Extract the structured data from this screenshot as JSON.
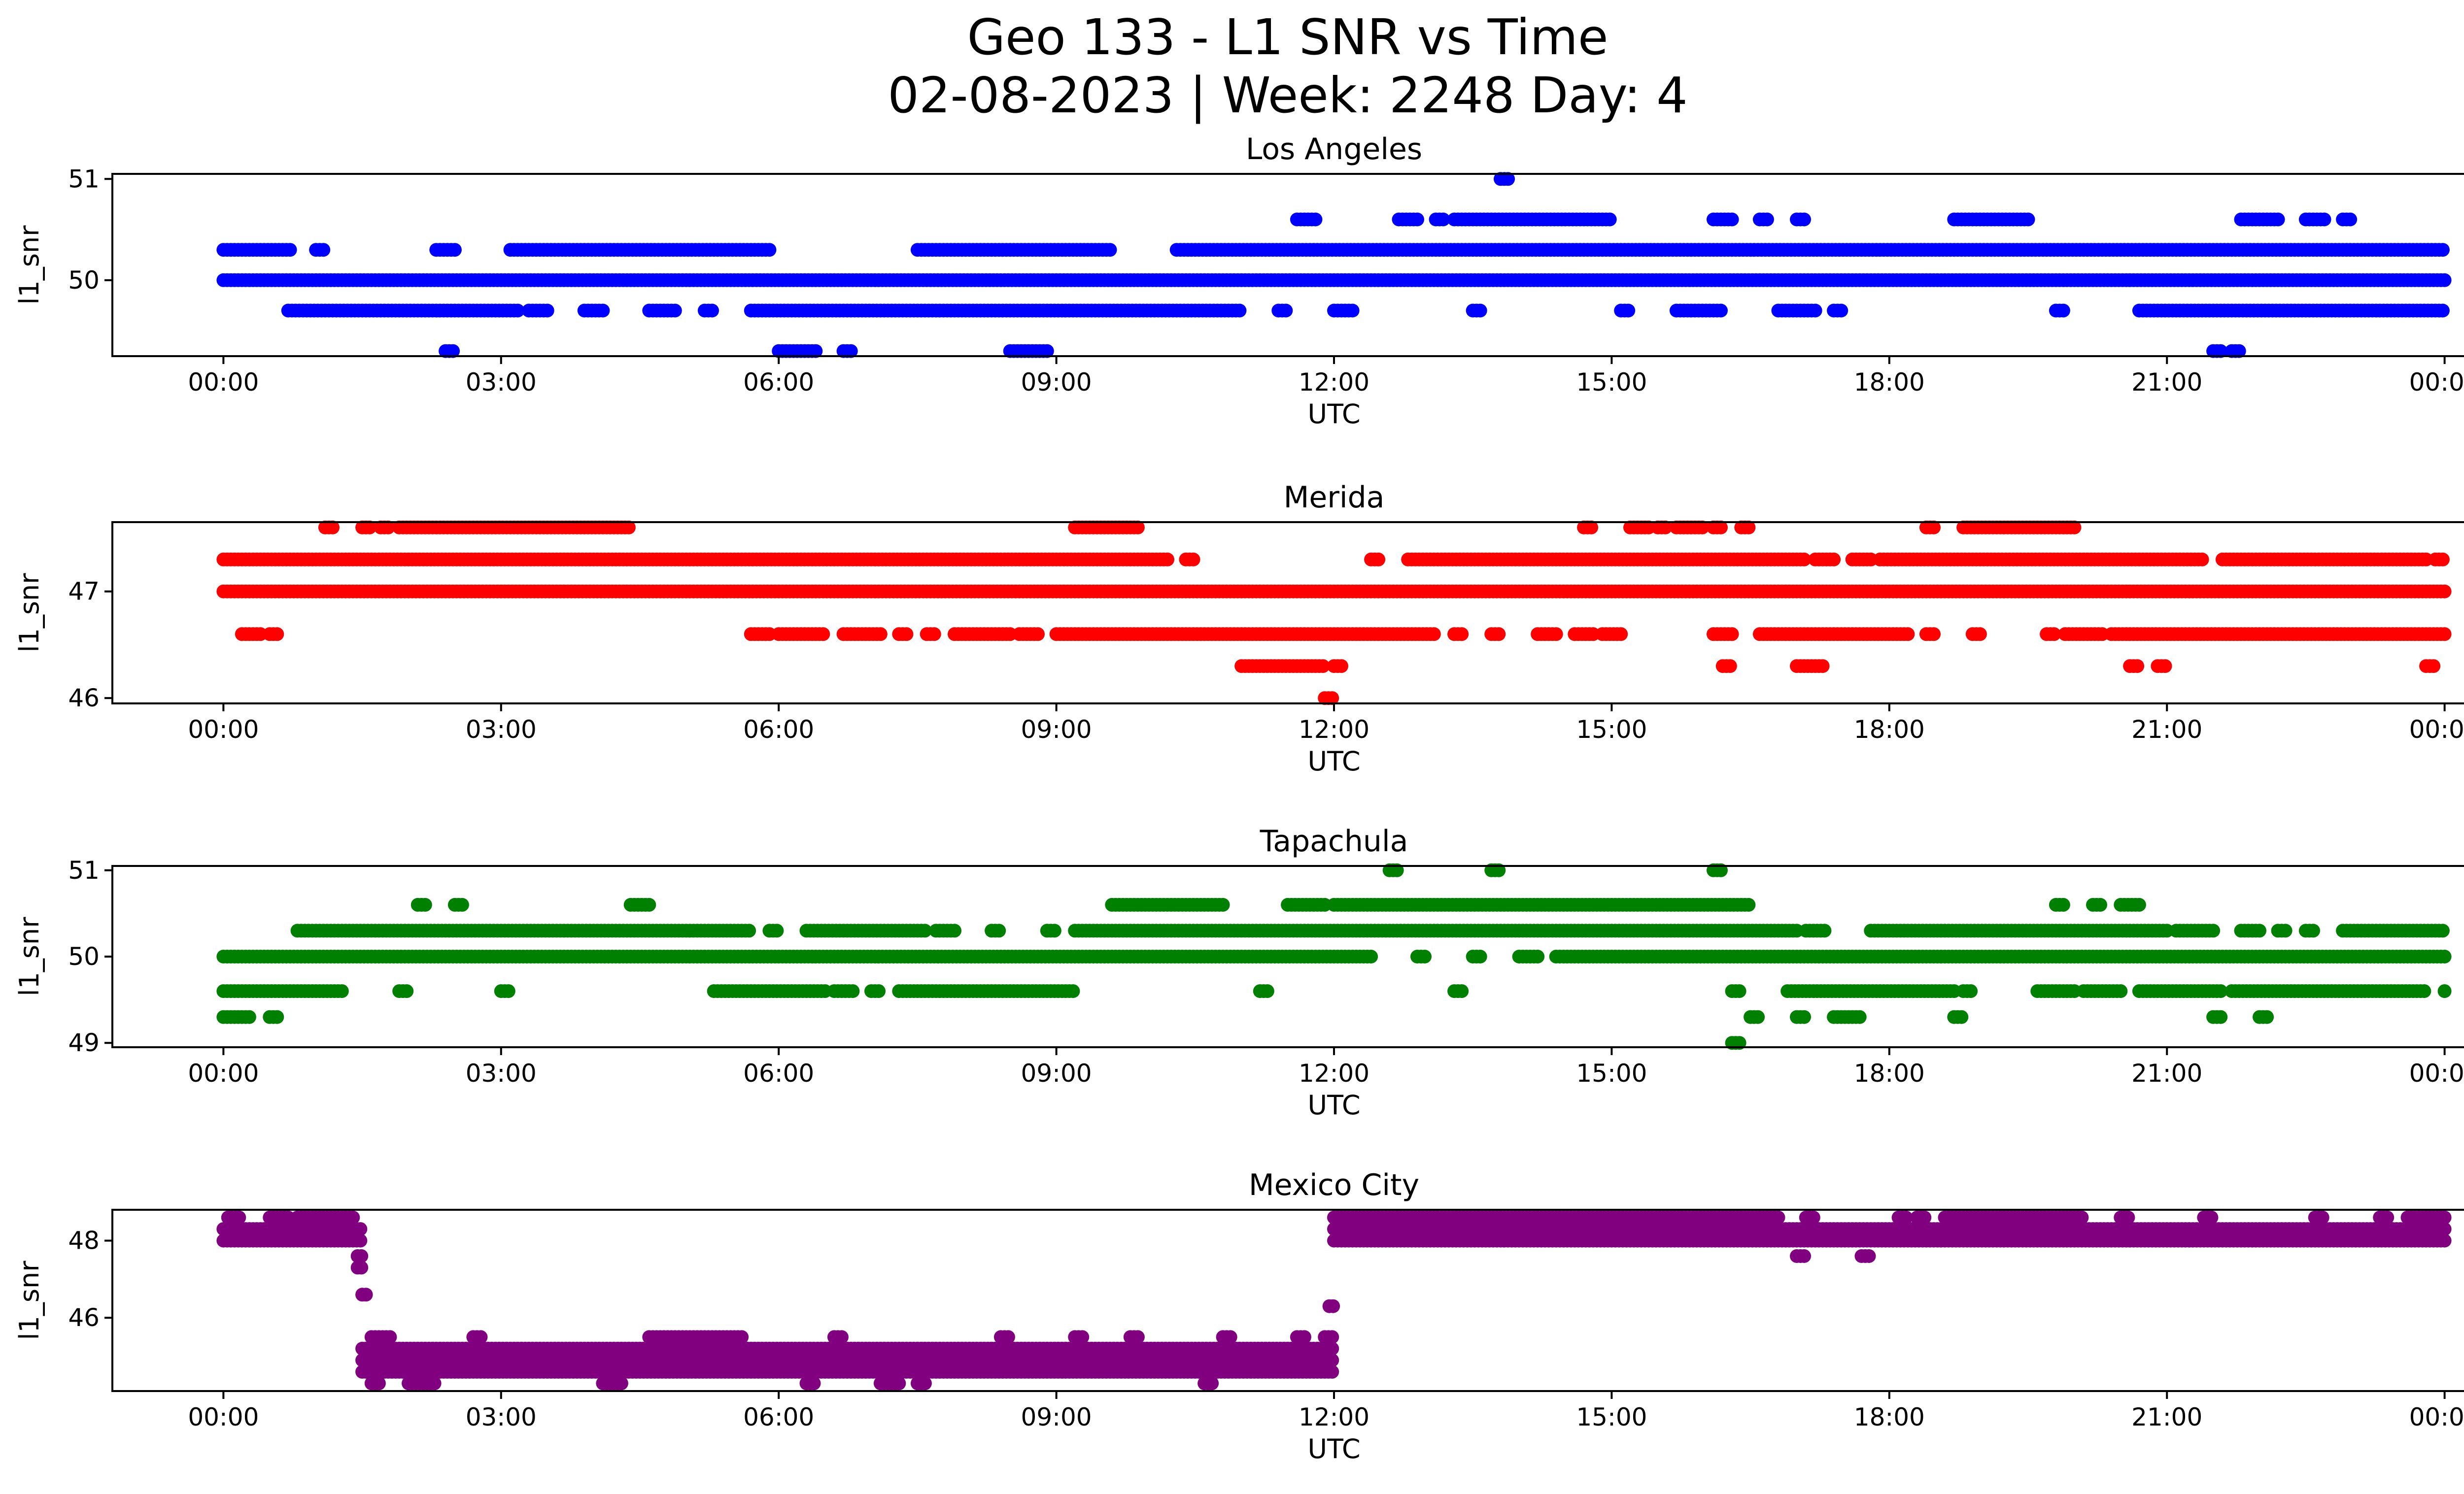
{
  "chart_data": {
    "type": "scatter",
    "title_line1": "Geo 133 - L1 SNR vs Time",
    "title_line2": "02-08-2023 | Week: 2248 Day: 4",
    "xticks": [
      "00:00",
      "03:00",
      "06:00",
      "09:00",
      "12:00",
      "15:00",
      "18:00",
      "21:00",
      "00:00"
    ],
    "xlim_hours": [
      -1.2,
      25.2
    ],
    "panels": [
      {
        "title": "Los Angeles",
        "xlabel": "UTC",
        "ylabel": "l1_snr",
        "color": "#0000ff",
        "ylim": [
          49.25,
          51.05
        ],
        "yticks": [
          50,
          51
        ],
        "levels": [
          {
            "y": 50.0,
            "segments": [
              [
                0,
                24
              ]
            ]
          },
          {
            "y": 50.3,
            "segments": [
              [
                0,
                0.75
              ],
              [
                1.0,
                1.1
              ],
              [
                2.3,
                2.5
              ],
              [
                3.1,
                5.9
              ],
              [
                7.5,
                9.6
              ],
              [
                10.3,
                24
              ]
            ]
          },
          {
            "y": 49.7,
            "segments": [
              [
                0.7,
                3.2
              ],
              [
                3.3,
                3.5
              ],
              [
                3.9,
                4.1
              ],
              [
                4.6,
                4.9
              ],
              [
                5.2,
                5.3
              ],
              [
                5.7,
                11.0
              ],
              [
                11.4,
                11.5
              ],
              [
                12.0,
                12.2
              ],
              [
                13.5,
                13.6
              ],
              [
                15.1,
                15.2
              ],
              [
                15.7,
                16.2
              ],
              [
                16.8,
                17.2
              ],
              [
                17.4,
                17.5
              ],
              [
                19.8,
                19.9
              ],
              [
                20.7,
                24
              ]
            ]
          },
          {
            "y": 50.6,
            "segments": [
              [
                11.6,
                11.8
              ],
              [
                12.7,
                12.9
              ],
              [
                13.1,
                13.2
              ],
              [
                13.3,
                15.0
              ],
              [
                16.1,
                16.3
              ],
              [
                16.6,
                16.7
              ],
              [
                17.0,
                17.1
              ],
              [
                18.7,
                19.5
              ],
              [
                21.8,
                22.2
              ],
              [
                22.5,
                22.7
              ],
              [
                22.9,
                23.0
              ]
            ]
          },
          {
            "y": 49.3,
            "segments": [
              [
                2.4,
                2.5
              ],
              [
                6.0,
                6.4
              ],
              [
                6.7,
                6.8
              ],
              [
                8.5,
                8.9
              ],
              [
                21.5,
                21.6
              ],
              [
                21.7,
                21.8
              ]
            ]
          },
          {
            "y": 51.0,
            "segments": [
              [
                13.8,
                13.9
              ]
            ]
          }
        ]
      },
      {
        "title": "Merida",
        "xlabel": "UTC",
        "ylabel": "l1_snr",
        "color": "#ff0000",
        "ylim": [
          45.95,
          47.65
        ],
        "yticks": [
          46,
          47
        ],
        "levels": [
          {
            "y": 47.0,
            "segments": [
              [
                0,
                24
              ]
            ]
          },
          {
            "y": 47.3,
            "segments": [
              [
                0,
                10.2
              ],
              [
                10.4,
                10.5
              ],
              [
                12.4,
                12.5
              ],
              [
                12.8,
                17.1
              ],
              [
                17.2,
                17.4
              ],
              [
                17.6,
                17.8
              ],
              [
                17.9,
                21.4
              ],
              [
                21.6,
                23.8
              ],
              [
                23.9,
                24
              ]
            ]
          },
          {
            "y": 46.6,
            "segments": [
              [
                0.2,
                0.4
              ],
              [
                0.5,
                0.6
              ],
              [
                5.7,
                5.9
              ],
              [
                6.0,
                6.5
              ],
              [
                6.7,
                7.1
              ],
              [
                7.3,
                7.4
              ],
              [
                7.6,
                7.7
              ],
              [
                7.9,
                8.5
              ],
              [
                8.6,
                8.8
              ],
              [
                9.0,
                13.1
              ],
              [
                13.3,
                13.4
              ],
              [
                13.7,
                13.8
              ],
              [
                14.2,
                14.4
              ],
              [
                14.6,
                14.8
              ],
              [
                14.9,
                15.1
              ],
              [
                16.1,
                16.3
              ],
              [
                16.6,
                18.2
              ],
              [
                18.4,
                18.5
              ],
              [
                18.9,
                19.0
              ],
              [
                19.7,
                19.8
              ],
              [
                19.9,
                20.3
              ],
              [
                20.4,
                24
              ]
            ]
          },
          {
            "y": 47.6,
            "segments": [
              [
                1.1,
                1.2
              ],
              [
                1.5,
                1.6
              ],
              [
                1.7,
                1.8
              ],
              [
                1.9,
                4.4
              ],
              [
                9.2,
                9.9
              ],
              [
                14.7,
                14.8
              ],
              [
                15.2,
                15.4
              ],
              [
                15.5,
                15.6
              ],
              [
                15.7,
                16.0
              ],
              [
                16.1,
                16.2
              ],
              [
                16.4,
                16.5
              ],
              [
                18.4,
                18.5
              ],
              [
                18.8,
                20.0
              ]
            ]
          },
          {
            "y": 46.3,
            "segments": [
              [
                11.0,
                11.9
              ],
              [
                12.0,
                12.1
              ],
              [
                16.2,
                16.3
              ],
              [
                17.0,
                17.3
              ],
              [
                20.6,
                20.7
              ],
              [
                20.9,
                21.0
              ],
              [
                23.8,
                23.9
              ]
            ]
          },
          {
            "y": 46.0,
            "segments": [
              [
                11.9,
                12.0
              ]
            ]
          }
        ]
      },
      {
        "title": "Tapachula",
        "xlabel": "UTC",
        "ylabel": "l1_snr",
        "color": "#008000",
        "ylim": [
          48.95,
          51.05
        ],
        "yticks": [
          49,
          50,
          51
        ],
        "levels": [
          {
            "y": 50.0,
            "segments": [
              [
                0,
                12.4
              ],
              [
                12.9,
                13.0
              ],
              [
                13.5,
                13.6
              ],
              [
                14.0,
                14.2
              ],
              [
                14.4,
                24
              ]
            ]
          },
          {
            "y": 50.3,
            "segments": [
              [
                0.8,
                5.7
              ],
              [
                5.9,
                6.0
              ],
              [
                6.3,
                7.6
              ],
              [
                7.7,
                7.9
              ],
              [
                8.3,
                8.4
              ],
              [
                8.9,
                9.0
              ],
              [
                9.2,
                17.0
              ],
              [
                17.1,
                17.3
              ],
              [
                17.8,
                21.0
              ],
              [
                21.1,
                21.5
              ],
              [
                21.8,
                22.0
              ],
              [
                22.2,
                22.3
              ],
              [
                22.5,
                22.6
              ],
              [
                22.9,
                24
              ]
            ]
          },
          {
            "y": 49.6,
            "segments": [
              [
                0,
                1.3
              ],
              [
                1.9,
                2.0
              ],
              [
                3.0,
                3.1
              ],
              [
                5.3,
                6.5
              ],
              [
                6.6,
                6.8
              ],
              [
                7.0,
                7.1
              ],
              [
                7.3,
                9.2
              ],
              [
                11.2,
                11.3
              ],
              [
                13.3,
                13.4
              ],
              [
                16.3,
                16.4
              ],
              [
                16.9,
                18.7
              ],
              [
                18.8,
                18.9
              ],
              [
                19.6,
                20.0
              ],
              [
                20.1,
                20.5
              ],
              [
                20.7,
                21.6
              ],
              [
                21.7,
                23.8
              ],
              [
                24.0,
                24.0
              ]
            ]
          },
          {
            "y": 50.6,
            "segments": [
              [
                2.1,
                2.2
              ],
              [
                2.5,
                2.6
              ],
              [
                4.4,
                4.6
              ],
              [
                9.6,
                10.8
              ],
              [
                11.5,
                11.9
              ],
              [
                12.0,
                16.5
              ],
              [
                19.8,
                19.9
              ],
              [
                20.2,
                20.3
              ],
              [
                20.5,
                20.7
              ]
            ]
          },
          {
            "y": 49.3,
            "segments": [
              [
                0,
                0.3
              ],
              [
                0.5,
                0.6
              ],
              [
                16.5,
                16.6
              ],
              [
                17.0,
                17.1
              ],
              [
                17.4,
                17.7
              ],
              [
                18.7,
                18.8
              ],
              [
                21.5,
                21.6
              ],
              [
                22.0,
                22.1
              ]
            ]
          },
          {
            "y": 51.0,
            "segments": [
              [
                12.6,
                12.7
              ],
              [
                13.7,
                13.8
              ],
              [
                16.1,
                16.2
              ]
            ]
          },
          {
            "y": 49.0,
            "segments": [
              [
                16.3,
                16.4
              ]
            ]
          }
        ]
      },
      {
        "title": "Mexico City",
        "xlabel": "UTC",
        "ylabel": "l1_snr",
        "color": "#800080",
        "ylim": [
          44.1,
          48.8
        ],
        "yticks": [
          46,
          48
        ],
        "levels": [
          {
            "y": 48.0,
            "segments": [
              [
                0,
                1.5
              ],
              [
                12.0,
                24
              ]
            ]
          },
          {
            "y": 48.3,
            "segments": [
              [
                0,
                1.5
              ],
              [
                12.0,
                24
              ]
            ]
          },
          {
            "y": 48.6,
            "segments": [
              [
                0.05,
                0.2
              ],
              [
                0.5,
                0.7
              ],
              [
                0.8,
                1.4
              ],
              [
                12.0,
                16.8
              ],
              [
                17.1,
                17.2
              ],
              [
                18.1,
                18.2
              ],
              [
                18.3,
                18.4
              ],
              [
                18.6,
                20.1
              ],
              [
                20.5,
                20.6
              ],
              [
                21.4,
                21.5
              ],
              [
                22.6,
                22.7
              ],
              [
                23.3,
                23.4
              ],
              [
                23.6,
                24
              ]
            ]
          },
          {
            "y": 47.6,
            "segments": [
              [
                1.45,
                1.5
              ],
              [
                17.0,
                17.1
              ],
              [
                17.7,
                17.8
              ]
            ]
          },
          {
            "y": 47.3,
            "segments": [
              [
                1.45,
                1.5
              ]
            ]
          },
          {
            "y": 46.6,
            "segments": [
              [
                1.5,
                1.55
              ]
            ]
          },
          {
            "y": 46.3,
            "segments": [
              [
                11.95,
                12.0
              ]
            ]
          },
          {
            "y": 45.5,
            "segments": [
              [
                1.6,
                1.8
              ],
              [
                2.7,
                2.8
              ],
              [
                4.6,
                5.6
              ],
              [
                6.6,
                6.7
              ],
              [
                8.4,
                8.5
              ],
              [
                9.2,
                9.3
              ],
              [
                9.8,
                9.9
              ],
              [
                10.8,
                10.9
              ],
              [
                11.6,
                11.7
              ],
              [
                11.9,
                12.0
              ]
            ]
          },
          {
            "y": 45.2,
            "segments": [
              [
                1.5,
                12.0
              ]
            ]
          },
          {
            "y": 44.9,
            "segments": [
              [
                1.5,
                12.0
              ]
            ]
          },
          {
            "y": 44.6,
            "segments": [
              [
                1.5,
                12.0
              ]
            ]
          },
          {
            "y": 44.3,
            "segments": [
              [
                1.6,
                1.7
              ],
              [
                2.0,
                2.3
              ],
              [
                4.1,
                4.3
              ],
              [
                6.3,
                6.4
              ],
              [
                7.1,
                7.3
              ],
              [
                7.5,
                7.6
              ],
              [
                10.6,
                10.7
              ]
            ]
          }
        ]
      }
    ]
  }
}
